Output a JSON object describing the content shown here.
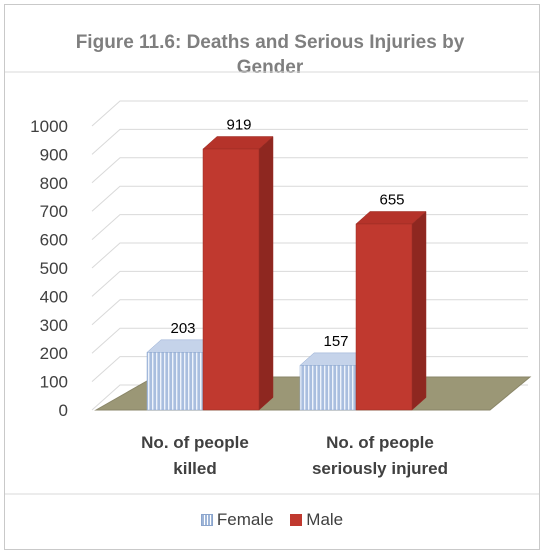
{
  "chart_data": {
    "type": "bar",
    "title": "Figure 11.6: Deaths and Serious Injuries by Gender",
    "categories": [
      "No. of people killed",
      "No. of people seriously injured"
    ],
    "category_lines": [
      [
        "No. of people",
        "killed"
      ],
      [
        "No. of people",
        "seriously injured"
      ]
    ],
    "series": [
      {
        "name": "Female",
        "values": [
          203,
          157
        ],
        "color": "#9fb6d8"
      },
      {
        "name": "Male",
        "values": [
          919,
          655
        ],
        "color": "#c0392f"
      }
    ],
    "ylim": [
      0,
      1000
    ],
    "yticks": [
      0,
      100,
      200,
      300,
      400,
      500,
      600,
      700,
      800,
      900,
      1000
    ],
    "grid": true,
    "legend_position": "bottom",
    "style": "3d-bar"
  }
}
